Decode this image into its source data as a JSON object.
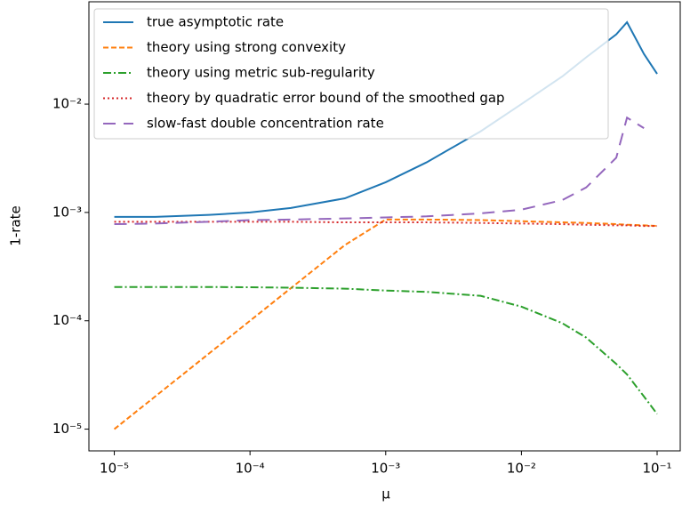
{
  "chart_data": {
    "type": "line",
    "xlabel": "μ",
    "ylabel": "1-rate",
    "xscale": "log",
    "yscale": "log",
    "xlim": [
      6.5e-06,
      0.148
    ],
    "ylim": [
      6.3e-06,
      0.088
    ],
    "xticks": [
      {
        "value": 1e-05,
        "label": "10⁻⁵"
      },
      {
        "value": 0.0001,
        "label": "10⁻⁴"
      },
      {
        "value": 0.001,
        "label": "10⁻³"
      },
      {
        "value": 0.01,
        "label": "10⁻²"
      },
      {
        "value": 0.1,
        "label": "10⁻¹"
      }
    ],
    "yticks": [
      {
        "value": 1e-05,
        "label": "10⁻⁵"
      },
      {
        "value": 0.0001,
        "label": "10⁻⁴"
      },
      {
        "value": 0.001,
        "label": "10⁻³"
      },
      {
        "value": 0.01,
        "label": "10⁻²"
      }
    ],
    "legend": "upper left",
    "x": [
      1e-05,
      2e-05,
      5e-05,
      0.0001,
      0.0002,
      0.0005,
      0.001,
      0.002,
      0.005,
      0.01,
      0.02,
      0.03,
      0.05,
      0.06,
      0.08,
      0.1
    ],
    "series": [
      {
        "name": "true asymptotic rate",
        "color": "#1f77b4",
        "linestyle": "solid",
        "values": [
          0.00091,
          0.00091,
          0.00095,
          0.001,
          0.0011,
          0.00135,
          0.0019,
          0.0029,
          0.0056,
          0.01,
          0.018,
          0.027,
          0.044,
          0.057,
          0.029,
          0.019
        ]
      },
      {
        "name": "theory using strong convexity",
        "color": "#ff7f0e",
        "linestyle": "dashed",
        "values": [
          1e-05,
          2e-05,
          5e-05,
          0.0001,
          0.0002,
          0.0005,
          0.00086,
          0.00086,
          0.00085,
          0.00083,
          0.00081,
          0.0008,
          0.00078,
          0.00077,
          0.00076,
          0.00075
        ]
      },
      {
        "name": "theory using metric sub-regularity",
        "color": "#2ca02c",
        "linestyle": "dashdot",
        "values": [
          0.000205,
          0.000205,
          0.000205,
          0.000204,
          0.000202,
          0.000198,
          0.00019,
          0.000185,
          0.00017,
          0.000135,
          9.5e-05,
          7e-05,
          4e-05,
          3.2e-05,
          2e-05,
          1.38e-05
        ]
      },
      {
        "name": "theory by quadratic error bound of the smoothed gap",
        "color": "#d62728",
        "linestyle": "dotted",
        "values": [
          0.00082,
          0.00082,
          0.00082,
          0.00082,
          0.00082,
          0.00081,
          0.00081,
          0.00081,
          0.0008,
          0.00079,
          0.00078,
          0.00077,
          0.00076,
          0.00076,
          0.00075,
          0.00075
        ]
      },
      {
        "name": "slow-fast double concentration rate",
        "color": "#9467bd",
        "linestyle": "longdash",
        "values": [
          0.00078,
          0.00079,
          0.00082,
          0.00085,
          0.00086,
          0.00088,
          0.0009,
          0.00092,
          0.00098,
          0.00106,
          0.0013,
          0.0017,
          0.0032,
          0.0075,
          0.006,
          null
        ]
      }
    ]
  }
}
